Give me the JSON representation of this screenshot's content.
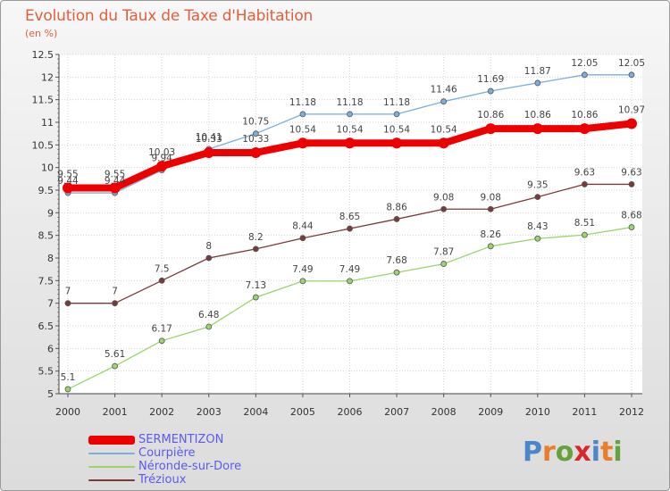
{
  "title": "Evolution du Taux de Taxe d'Habitation",
  "subtitle": "(en %)",
  "logo_text": "Proxiti",
  "logo_colors": [
    "#4a86c8",
    "#e87d2a",
    "#66a23c",
    "#d8262e",
    "#4a86c8",
    "#e87d2a",
    "#66a23c"
  ],
  "chart_data": {
    "type": "line",
    "title": "Evolution du Taux de Taxe d'Habitation",
    "ylabel": "(en %)",
    "xlabel": "",
    "ylim": [
      5,
      12.5
    ],
    "yticks": [
      "5",
      "5.5",
      "6",
      "6.5",
      "7",
      "7.5",
      "8",
      "8.5",
      "9",
      "9.5",
      "10",
      "10.5",
      "11",
      "11.5",
      "12",
      "12.5"
    ],
    "x": [
      "2000",
      "2001",
      "2002",
      "2003",
      "2004",
      "2005",
      "2006",
      "2007",
      "2008",
      "2009",
      "2010",
      "2011",
      "2012"
    ],
    "grid": true,
    "legend_position": "bottom-left",
    "series": [
      {
        "name": "SERMENTIZON",
        "color": "#ee0000",
        "values": [
          9.55,
          9.55,
          10.03,
          10.33,
          10.33,
          10.54,
          10.54,
          10.54,
          10.54,
          10.86,
          10.86,
          10.86,
          10.97
        ],
        "labels": [
          "9.55",
          "9.55",
          "10.03",
          "10.33",
          "10.33",
          "10.54",
          "10.54",
          "10.54",
          "10.54",
          "10.86",
          "10.86",
          "10.86",
          "10.97"
        ]
      },
      {
        "name": "Courpière",
        "color": "#7aaedc",
        "values": [
          9.44,
          9.44,
          9.94,
          10.41,
          10.75,
          11.18,
          11.18,
          11.18,
          11.46,
          11.69,
          11.87,
          12.05,
          12.05
        ],
        "labels": [
          "9.44",
          "9.44",
          "9.94",
          "10.41",
          "10.75",
          "11.18",
          "11.18",
          "11.18",
          "11.46",
          "11.69",
          "11.87",
          "12.05",
          "12.05"
        ]
      },
      {
        "name": "Néronde-sur-Dore",
        "color": "#9ad46e",
        "values": [
          5.1,
          5.61,
          6.17,
          6.48,
          7.13,
          7.49,
          7.49,
          7.68,
          7.87,
          8.26,
          8.43,
          8.51,
          8.68
        ],
        "labels": [
          "5.1",
          "5.61",
          "6.17",
          "6.48",
          "7.13",
          "7.49",
          "7.49",
          "7.68",
          "7.87",
          "8.26",
          "8.43",
          "8.51",
          "8.68"
        ]
      },
      {
        "name": "Trézioux",
        "color": "#7a3a3a",
        "values": [
          7,
          7,
          7.5,
          8,
          8.2,
          8.44,
          8.65,
          8.86,
          9.08,
          9.08,
          9.35,
          9.63,
          9.63
        ],
        "labels": [
          "7",
          "7",
          "7.5",
          "8",
          "8.2",
          "8.44",
          "8.65",
          "8.86",
          "9.08",
          "9.08",
          "9.35",
          "9.63",
          "9.63"
        ]
      }
    ]
  }
}
